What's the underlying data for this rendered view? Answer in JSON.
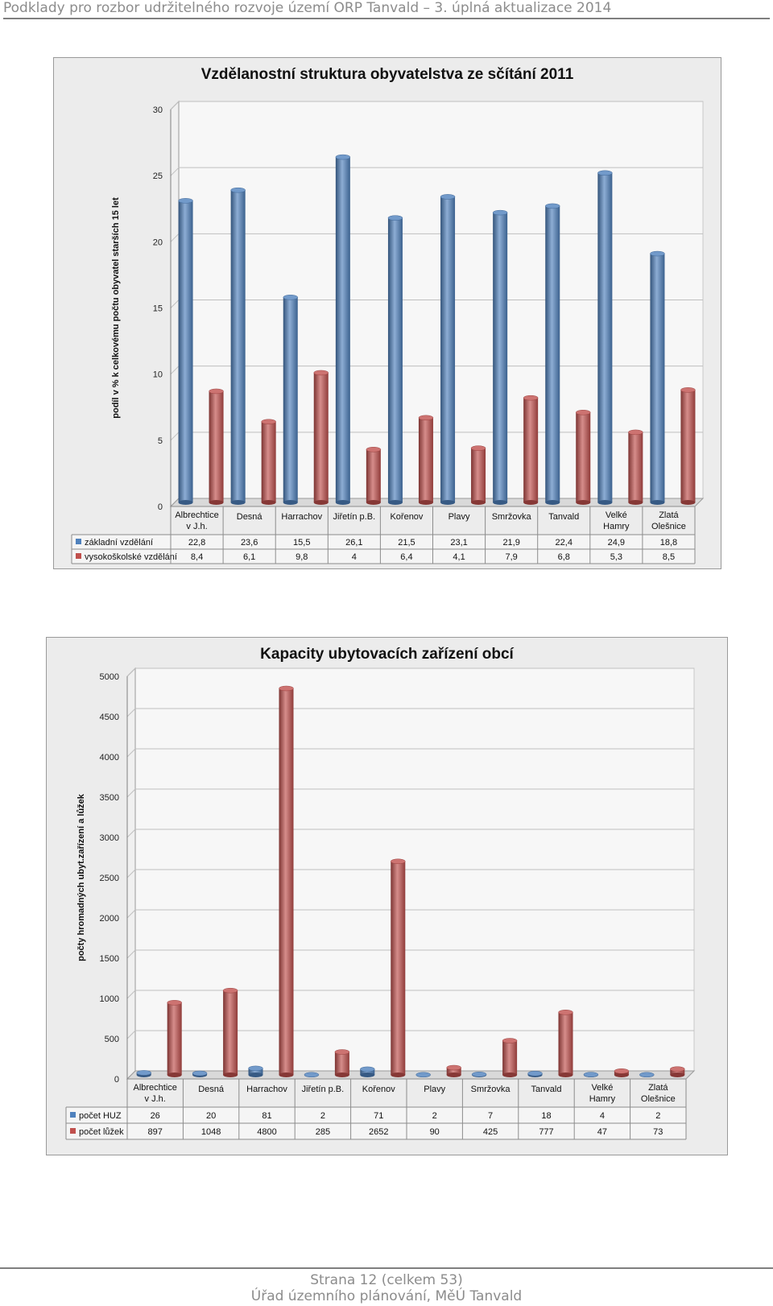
{
  "header": {
    "text": "Podklady pro rozbor udržitelného rozvoje území ORP Tanvald – 3. úplná aktualizace 2014"
  },
  "footer": {
    "page": "Strana 12 (celkem 53)",
    "office": "Úřad územního plánování, MěÚ Tanvald"
  },
  "colors": {
    "blue": "#4f81bd",
    "red": "#c0504d",
    "frame_bg": "#ececec",
    "plot_bg": "#f7f7f7",
    "grid": "#bfbfbf"
  },
  "chart_data": [
    {
      "type": "bar",
      "title": "Vzdělanostní struktura obyvatelstva ze sčítání 2011",
      "ylabel": "podíl v % k celkovému počtu obyvatel starších 15 let",
      "xlabel": "",
      "ylim": [
        0,
        30
      ],
      "yticks": [
        "0",
        "5",
        "10",
        "15",
        "20",
        "25",
        "30"
      ],
      "grid": true,
      "legend": "data-table",
      "categories": [
        [
          "Albrechtice",
          "v J.h."
        ],
        [
          "Desná"
        ],
        [
          "Harrachov"
        ],
        [
          "Jiřetín p.B."
        ],
        [
          "Kořenov"
        ],
        [
          "Plavy"
        ],
        [
          "Smržovka"
        ],
        [
          "Tanvald"
        ],
        [
          "Velké",
          "Hamry"
        ],
        [
          "Zlatá",
          "Olešnice"
        ]
      ],
      "series": [
        {
          "name": "základní vzdělání",
          "color": "#4f81bd",
          "values": [
            22.8,
            23.6,
            15.5,
            26.1,
            21.5,
            23.1,
            21.9,
            22.4,
            24.9,
            18.8
          ],
          "labels": [
            "22,8",
            "23,6",
            "15,5",
            "26,1",
            "21,5",
            "23,1",
            "21,9",
            "22,4",
            "24,9",
            "18,8"
          ]
        },
        {
          "name": "vysokoškolské vzdělání",
          "color": "#c0504d",
          "values": [
            8.4,
            6.1,
            9.8,
            4,
            6.4,
            4.1,
            7.9,
            6.8,
            5.3,
            8.5
          ],
          "labels": [
            "8,4",
            "6,1",
            "9,8",
            "4",
            "6,4",
            "4,1",
            "7,9",
            "6,8",
            "5,3",
            "8,5"
          ]
        }
      ]
    },
    {
      "type": "bar",
      "title": "Kapacity ubytovacích zařízení obcí",
      "ylabel": "počty hromadných ubyt.zařízení a lůžek",
      "xlabel": "",
      "ylim": [
        0,
        5000
      ],
      "yticks": [
        "0",
        "500",
        "1000",
        "1500",
        "2000",
        "2500",
        "3000",
        "3500",
        "4000",
        "4500",
        "5000"
      ],
      "grid": true,
      "legend": "data-table",
      "categories": [
        [
          "Albrechtice",
          "v J.h."
        ],
        [
          "Desná"
        ],
        [
          "Harrachov"
        ],
        [
          "Jiřetín p.B."
        ],
        [
          "Kořenov"
        ],
        [
          "Plavy"
        ],
        [
          "Smržovka"
        ],
        [
          "Tanvald"
        ],
        [
          "Velké",
          "Hamry"
        ],
        [
          "Zlatá",
          "Olešnice"
        ]
      ],
      "series": [
        {
          "name": "počet HUZ",
          "color": "#4f81bd",
          "values": [
            26,
            20,
            81,
            2,
            71,
            2,
            7,
            18,
            4,
            2
          ],
          "labels": [
            "26",
            "20",
            "81",
            "2",
            "71",
            "2",
            "7",
            "18",
            "4",
            "2"
          ]
        },
        {
          "name": "počet lůžek",
          "color": "#c0504d",
          "values": [
            897,
            1048,
            4800,
            285,
            2652,
            90,
            425,
            777,
            47,
            73
          ],
          "labels": [
            "897",
            "1048",
            "4800",
            "285",
            "2652",
            "90",
            "425",
            "777",
            "47",
            "73"
          ]
        }
      ]
    }
  ]
}
